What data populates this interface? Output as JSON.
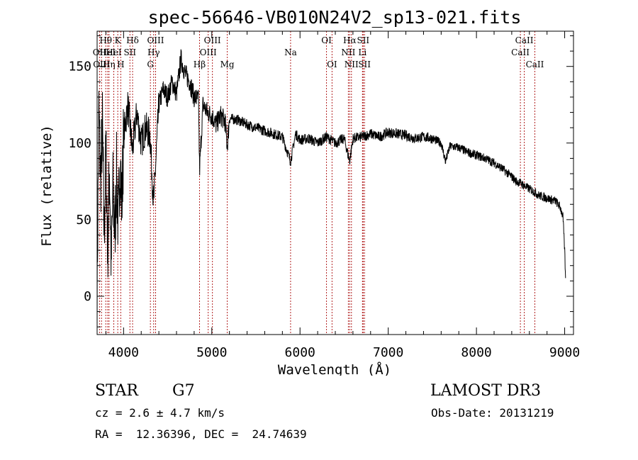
{
  "chart_data": {
    "type": "line",
    "title": "spec-56646-VB010N24V2_sp13-021.fits",
    "xlabel": "Wavelength (Å)",
    "ylabel": "Flux (relative)",
    "xlim": [
      3700,
      9100
    ],
    "ylim": [
      -25,
      173
    ],
    "xticks": [
      4000,
      5000,
      6000,
      7000,
      8000,
      9000
    ],
    "yticks": [
      0,
      50,
      100,
      150
    ],
    "grid": false,
    "series": [
      {
        "name": "spectrum",
        "x": [
          3700,
          3720,
          3740,
          3760,
          3780,
          3800,
          3820,
          3840,
          3860,
          3880,
          3900,
          3920,
          3940,
          3960,
          3980,
          4000,
          4050,
          4100,
          4150,
          4200,
          4250,
          4300,
          4340,
          4400,
          4450,
          4500,
          4550,
          4600,
          4650,
          4700,
          4750,
          4800,
          4850,
          4861,
          4900,
          4950,
          5000,
          5050,
          5100,
          5150,
          5175,
          5200,
          5300,
          5400,
          5500,
          5600,
          5700,
          5800,
          5893,
          5950,
          6000,
          6100,
          6200,
          6300,
          6400,
          6500,
          6563,
          6600,
          6700,
          6800,
          6900,
          7000,
          7100,
          7200,
          7300,
          7400,
          7500,
          7600,
          7650,
          7700,
          7800,
          7900,
          8000,
          8100,
          8200,
          8300,
          8400,
          8450,
          8500,
          8542,
          8600,
          8662,
          8700,
          8800,
          8900,
          8950,
          8980,
          9000,
          9010
        ],
        "y": [
          5,
          120,
          75,
          110,
          40,
          95,
          30,
          85,
          20,
          70,
          40,
          80,
          45,
          90,
          60,
          105,
          125,
          95,
          120,
          100,
          110,
          105,
          60,
          125,
          135,
          130,
          140,
          132,
          155,
          145,
          140,
          130,
          128,
          82,
          125,
          120,
          118,
          112,
          118,
          114,
          98,
          116,
          115,
          112,
          110,
          108,
          106,
          104,
          88,
          106,
          102,
          103,
          100,
          104,
          100,
          103,
          88,
          103,
          104,
          106,
          104,
          107,
          106,
          105,
          103,
          104,
          103,
          100,
          88,
          98,
          97,
          94,
          92,
          90,
          87,
          83,
          78,
          75,
          74,
          72,
          70,
          68,
          66,
          64,
          62,
          58,
          52,
          30,
          10
        ]
      }
    ],
    "lines": [
      {
        "wavelength": 3727,
        "label": "OII",
        "row": 2
      },
      {
        "wavelength": 3750,
        "label": "OIII",
        "row": 3
      },
      {
        "wavelength": 3798,
        "label": "Hθ",
        "row": 1
      },
      {
        "wavelength": 3820,
        "label": "HeI",
        "row": 2
      },
      {
        "wavelength": 3835,
        "label": "Hη",
        "row": 3
      },
      {
        "wavelength": 3889,
        "label": "HeI",
        "row": 2
      },
      {
        "wavelength": 3934,
        "label": "K",
        "row": 1
      },
      {
        "wavelength": 3968,
        "label": "H",
        "row": 3
      },
      {
        "wavelength": 4072,
        "label": "SII",
        "row": 2
      },
      {
        "wavelength": 4102,
        "label": "Hδ",
        "row": 1
      },
      {
        "wavelength": 4304,
        "label": "G",
        "row": 3
      },
      {
        "wavelength": 4341,
        "label": "Hγ",
        "row": 2
      },
      {
        "wavelength": 4363,
        "label": "OIII",
        "row": 1
      },
      {
        "wavelength": 4861,
        "label": "Hβ",
        "row": 3
      },
      {
        "wavelength": 4959,
        "label": "OIII",
        "row": 2
      },
      {
        "wavelength": 5007,
        "label": "OIII",
        "row": 1
      },
      {
        "wavelength": 5175,
        "label": "Mg",
        "row": 3
      },
      {
        "wavelength": 5893,
        "label": "Na",
        "row": 2
      },
      {
        "wavelength": 6300,
        "label": "OI",
        "row": 1
      },
      {
        "wavelength": 6363,
        "label": "OI",
        "row": 3
      },
      {
        "wavelength": 6548,
        "label": "NII",
        "row": 2
      },
      {
        "wavelength": 6563,
        "label": "Hα",
        "row": 1
      },
      {
        "wavelength": 6583,
        "label": "NII",
        "row": 3
      },
      {
        "wavelength": 6708,
        "label": "Li",
        "row": 2
      },
      {
        "wavelength": 6716,
        "label": "SII",
        "row": 1
      },
      {
        "wavelength": 6731,
        "label": "SII",
        "row": 3
      },
      {
        "wavelength": 8498,
        "label": "CaII",
        "row": 2
      },
      {
        "wavelength": 8542,
        "label": "CaII",
        "row": 1
      },
      {
        "wavelength": 8662,
        "label": "CaII",
        "row": 3
      }
    ]
  },
  "info": {
    "class": "STAR",
    "subclass": "G7",
    "survey": "LAMOST DR3",
    "cz": "cz = 2.6 ± 4.7 km/s",
    "obs_date": "Obs-Date: 20131219",
    "coords": "RA =  12.36396, DEC =  24.74639"
  }
}
